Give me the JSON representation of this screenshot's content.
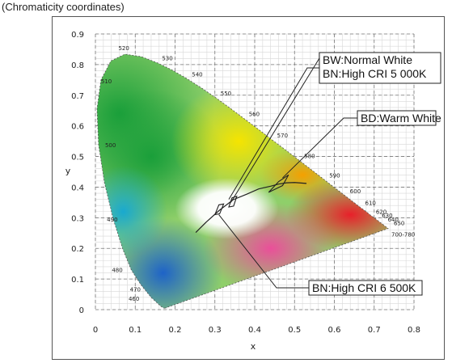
{
  "caption": "(Chromaticity coordinates)",
  "chart_data": {
    "type": "scatter",
    "xlabel": "x",
    "ylabel": "y",
    "xlim": [
      0,
      0.8
    ],
    "ylim": [
      0,
      0.9
    ],
    "x_ticks": [
      "0",
      "0.1",
      "0.2",
      "0.3",
      "0.4",
      "0.5",
      "0.6",
      "0.7",
      "0.8"
    ],
    "y_ticks": [
      "0",
      "0.1",
      "0.2",
      "0.3",
      "0.4",
      "0.5",
      "0.6",
      "0.7",
      "0.8",
      "0.9"
    ],
    "grid": true,
    "spectral_locus": [
      [
        0.175,
        0.005
      ],
      [
        0.172,
        0.005
      ],
      [
        0.165,
        0.01
      ],
      [
        0.14,
        0.04
      ],
      [
        0.115,
        0.08
      ],
      [
        0.09,
        0.13
      ],
      [
        0.068,
        0.2
      ],
      [
        0.045,
        0.295
      ],
      [
        0.023,
        0.413
      ],
      [
        0.008,
        0.538
      ],
      [
        0.004,
        0.655
      ],
      [
        0.014,
        0.75
      ],
      [
        0.039,
        0.812
      ],
      [
        0.074,
        0.834
      ],
      [
        0.115,
        0.826
      ],
      [
        0.155,
        0.806
      ],
      [
        0.193,
        0.782
      ],
      [
        0.23,
        0.754
      ],
      [
        0.266,
        0.724
      ],
      [
        0.302,
        0.692
      ],
      [
        0.337,
        0.659
      ],
      [
        0.373,
        0.624
      ],
      [
        0.409,
        0.589
      ],
      [
        0.444,
        0.554
      ],
      [
        0.479,
        0.52
      ],
      [
        0.512,
        0.487
      ],
      [
        0.545,
        0.454
      ],
      [
        0.575,
        0.424
      ],
      [
        0.603,
        0.396
      ],
      [
        0.627,
        0.372
      ],
      [
        0.648,
        0.351
      ],
      [
        0.665,
        0.334
      ],
      [
        0.68,
        0.32
      ],
      [
        0.691,
        0.308
      ],
      [
        0.7,
        0.3
      ],
      [
        0.735,
        0.265
      ]
    ],
    "wavelength_labels": [
      {
        "text": "520",
        "x": 0.074,
        "y": 0.834
      },
      {
        "text": "530",
        "x": 0.155,
        "y": 0.806
      },
      {
        "text": "540",
        "x": 0.23,
        "y": 0.754
      },
      {
        "text": "550",
        "x": 0.302,
        "y": 0.692
      },
      {
        "text": "560",
        "x": 0.373,
        "y": 0.624
      },
      {
        "text": "570",
        "x": 0.444,
        "y": 0.554
      },
      {
        "text": "580",
        "x": 0.512,
        "y": 0.487
      },
      {
        "text": "590",
        "x": 0.575,
        "y": 0.424
      },
      {
        "text": "600",
        "x": 0.627,
        "y": 0.372
      },
      {
        "text": "610",
        "x": 0.665,
        "y": 0.334
      },
      {
        "text": "620",
        "x": 0.69,
        "y": 0.308
      },
      {
        "text": "630",
        "x": 0.705,
        "y": 0.295
      },
      {
        "text": "640",
        "x": 0.72,
        "y": 0.283
      },
      {
        "text": "650",
        "x": 0.735,
        "y": 0.27
      },
      {
        "text": "700-780",
        "x": 0.735,
        "y": 0.265
      },
      {
        "text": "510",
        "x": 0.014,
        "y": 0.75
      },
      {
        "text": "500",
        "x": 0.008,
        "y": 0.538
      },
      {
        "text": "490",
        "x": 0.045,
        "y": 0.295
      },
      {
        "text": "480",
        "x": 0.09,
        "y": 0.13
      },
      {
        "text": "470",
        "x": 0.115,
        "y": 0.08
      },
      {
        "text": "460",
        "x": 0.14,
        "y": 0.04
      }
    ],
    "planckian_locus": [
      [
        0.252,
        0.252
      ],
      [
        0.28,
        0.288
      ],
      [
        0.31,
        0.323
      ],
      [
        0.346,
        0.359
      ],
      [
        0.38,
        0.377
      ],
      [
        0.41,
        0.394
      ],
      [
        0.44,
        0.403
      ],
      [
        0.46,
        0.41
      ],
      [
        0.48,
        0.414
      ],
      [
        0.5,
        0.415
      ],
      [
        0.53,
        0.412
      ]
    ],
    "bins": [
      {
        "name": "BN:High CRI 6 500K",
        "points": [
          [
            0.3,
            0.31
          ],
          [
            0.31,
            0.342
          ],
          [
            0.322,
            0.345
          ],
          [
            0.312,
            0.313
          ]
        ]
      },
      {
        "name": "BN:High CRI 5 000K",
        "points": [
          [
            0.335,
            0.335
          ],
          [
            0.343,
            0.365
          ],
          [
            0.355,
            0.37
          ],
          [
            0.347,
            0.338
          ]
        ]
      },
      {
        "name": "BD:Warm White",
        "points": [
          [
            0.435,
            0.383
          ],
          [
            0.46,
            0.418
          ],
          [
            0.485,
            0.44
          ],
          [
            0.47,
            0.405
          ]
        ]
      }
    ],
    "annotations": [
      {
        "id": "bw",
        "lines": [
          "BW:Normal White",
          "BN:High CRI 5 000K"
        ],
        "points_to": [
          [
            0.335,
            0.36
          ],
          [
            0.34,
            0.35
          ]
        ]
      },
      {
        "id": "bd",
        "lines": [
          "BD:Warm White"
        ],
        "points_to": [
          [
            0.47,
            0.43
          ]
        ]
      },
      {
        "id": "bn6500",
        "lines": [
          "BN:High CRI 6 500K"
        ],
        "points_to": [
          [
            0.31,
            0.31
          ]
        ]
      }
    ]
  }
}
